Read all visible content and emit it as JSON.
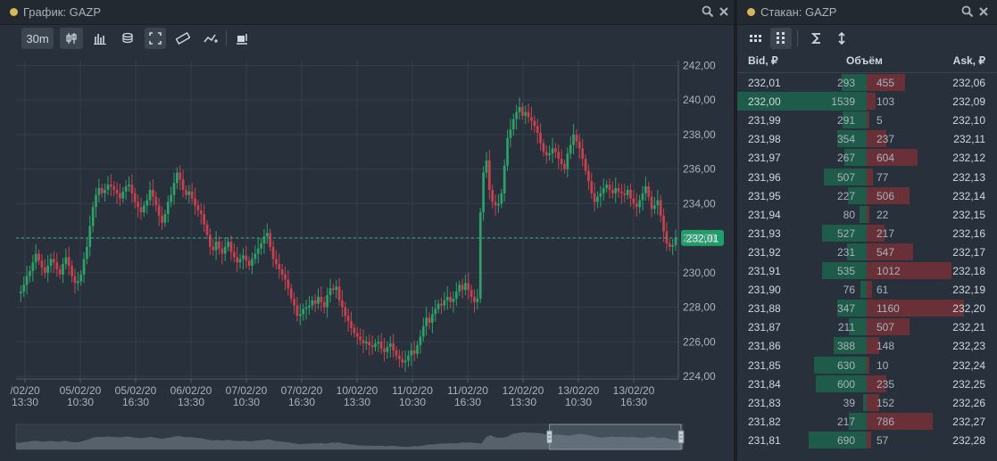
{
  "chart_panel": {
    "title": "График: GAZP",
    "interval": "30m"
  },
  "book_panel": {
    "title": "Стакан: GAZP"
  },
  "colors": {
    "up": "#2ea06a",
    "down": "#c8414f",
    "last_price_bg": "#1f9e6a",
    "bid_bar": "#1e5b48",
    "ask_bar": "#6a3038"
  },
  "icons": {
    "chart_toolbar": [
      "candlestick-icon",
      "bar-chart-icon",
      "coins-icon",
      "fullscreen-icon",
      "ruler-icon",
      "trend-line-icon",
      "export-icon"
    ],
    "book_toolbar": [
      "grid-compact-icon",
      "grid-icon",
      "sigma-icon",
      "sort-arrows-icon"
    ],
    "header": [
      "search-icon",
      "close-icon"
    ]
  },
  "chart_data": {
    "type": "candlestick",
    "instrument": "GAZP",
    "y_ticks": [
      "242,00",
      "240,00",
      "238,00",
      "236,00",
      "234,00",
      "232,00",
      "230,00",
      "228,00",
      "226,00",
      "224,00"
    ],
    "ylim": [
      224,
      242
    ],
    "last_price": "232,01",
    "last_price_value": 232.01,
    "x_ticks": [
      {
        "date": "/02/20",
        "time": "13:30"
      },
      {
        "date": "05/02/20",
        "time": "10:30"
      },
      {
        "date": "05/02/20",
        "time": "16:30"
      },
      {
        "date": "06/02/20",
        "time": "13:30"
      },
      {
        "date": "07/02/20",
        "time": "10:30"
      },
      {
        "date": "07/02/20",
        "time": "16:30"
      },
      {
        "date": "10/02/20",
        "time": "13:30"
      },
      {
        "date": "11/02/20",
        "time": "10:30"
      },
      {
        "date": "11/02/20",
        "time": "16:30"
      },
      {
        "date": "12/02/20",
        "time": "13:30"
      },
      {
        "date": "13/02/20",
        "time": "10:30"
      },
      {
        "date": "13/02/20",
        "time": "16:30"
      }
    ],
    "close_series": [
      228.8,
      228.9,
      229.3,
      229.8,
      230.1,
      230.6,
      231.1,
      230.7,
      230.3,
      230.0,
      230.4,
      230.8,
      230.6,
      230.2,
      229.9,
      230.5,
      230.9,
      230.4,
      229.8,
      229.4,
      229.5,
      229.9,
      230.8,
      231.5,
      232.7,
      233.8,
      234.5,
      234.9,
      234.6,
      234.8,
      235.1,
      235.0,
      234.8,
      234.6,
      234.3,
      234.7,
      235.0,
      235.1,
      234.6,
      234.1,
      233.8,
      233.5,
      233.9,
      234.2,
      234.8,
      234.4,
      233.9,
      233.3,
      232.9,
      233.4,
      234.1,
      234.5,
      235.2,
      235.8,
      235.4,
      234.8,
      234.5,
      234.7,
      234.3,
      233.9,
      233.6,
      233.4,
      232.8,
      232.2,
      231.5,
      231.3,
      231.8,
      231.4,
      231.1,
      231.5,
      231.8,
      231.2,
      230.9,
      230.6,
      230.8,
      231.0,
      230.7,
      230.4,
      230.8,
      231.1,
      231.4,
      231.7,
      232.1,
      232.3,
      231.5,
      230.8,
      230.5,
      230.2,
      229.9,
      229.6,
      229.1,
      228.5,
      228.1,
      227.5,
      227.6,
      227.9,
      228.0,
      228.1,
      228.4,
      228.2,
      228.6,
      228.3,
      228.0,
      228.7,
      229.1,
      229.0,
      229.2,
      228.4,
      228.0,
      227.5,
      227.2,
      226.8,
      226.5,
      226.3,
      226.1,
      225.9,
      226.0,
      225.8,
      225.7,
      225.9,
      226.0,
      225.6,
      225.4,
      225.7,
      225.9,
      225.5,
      225.2,
      225.0,
      224.8,
      224.9,
      225.2,
      225.5,
      225.3,
      225.8,
      226.3,
      226.9,
      227.4,
      227.1,
      227.6,
      227.9,
      228.2,
      228.1,
      228.4,
      228.6,
      228.3,
      228.5,
      228.9,
      229.3,
      229.0,
      229.4,
      229.0,
      228.6,
      228.3,
      228.5,
      233.5,
      235.8,
      236.5,
      234.8,
      234.1,
      233.9,
      234.0,
      234.6,
      236.2,
      237.8,
      238.3,
      238.9,
      239.3,
      239.6,
      239.1,
      239.3,
      239.0,
      238.8,
      238.5,
      238.1,
      237.5,
      237.0,
      236.8,
      236.9,
      237.2,
      237.0,
      236.6,
      236.3,
      236.0,
      236.9,
      237.4,
      238.0,
      237.6,
      237.2,
      236.6,
      235.9,
      235.3,
      234.6,
      234.1,
      234.4,
      234.6,
      234.9,
      235.1,
      234.8,
      234.6,
      234.9,
      234.7,
      234.6,
      234.5,
      234.8,
      234.3,
      234.0,
      233.8,
      234.2,
      234.6,
      235.0,
      234.4,
      233.7,
      233.9,
      234.2,
      233.3,
      232.4,
      231.7,
      231.5,
      231.6,
      232.0
    ]
  },
  "navigator": {
    "window_start_pct": 80,
    "window_end_pct": 100
  },
  "order_book": {
    "headers": {
      "bid": "Bid, ₽",
      "volume": "Объём",
      "ask": "Ask, ₽"
    },
    "max_volume": 1539,
    "rows": [
      {
        "bid": "231,81",
        "bid_vol": "690",
        "ask_vol": "57",
        "ask": "232,28"
      },
      {
        "bid": "231,82",
        "bid_vol": "217",
        "ask_vol": "786",
        "ask": "232,27"
      },
      {
        "bid": "231,83",
        "bid_vol": "39",
        "ask_vol": "152",
        "ask": "232,26"
      },
      {
        "bid": "231,84",
        "bid_vol": "600",
        "ask_vol": "235",
        "ask": "232,25"
      },
      {
        "bid": "231,85",
        "bid_vol": "630",
        "ask_vol": "10",
        "ask": "232,24"
      },
      {
        "bid": "231,86",
        "bid_vol": "388",
        "ask_vol": "148",
        "ask": "232,23"
      },
      {
        "bid": "231,87",
        "bid_vol": "211",
        "ask_vol": "507",
        "ask": "232,21"
      },
      {
        "bid": "231,88",
        "bid_vol": "347",
        "ask_vol": "1160",
        "ask": "232,20"
      },
      {
        "bid": "231,90",
        "bid_vol": "76",
        "ask_vol": "61",
        "ask": "232,19"
      },
      {
        "bid": "231,91",
        "bid_vol": "535",
        "ask_vol": "1012",
        "ask": "232,18"
      },
      {
        "bid": "231,92",
        "bid_vol": "231",
        "ask_vol": "547",
        "ask": "232,17"
      },
      {
        "bid": "231,93",
        "bid_vol": "527",
        "ask_vol": "217",
        "ask": "232,16"
      },
      {
        "bid": "231,94",
        "bid_vol": "80",
        "ask_vol": "22",
        "ask": "232,15"
      },
      {
        "bid": "231,95",
        "bid_vol": "227",
        "ask_vol": "506",
        "ask": "232,14"
      },
      {
        "bid": "231,96",
        "bid_vol": "507",
        "ask_vol": "77",
        "ask": "232,13"
      },
      {
        "bid": "231,97",
        "bid_vol": "267",
        "ask_vol": "604",
        "ask": "232,12"
      },
      {
        "bid": "231,98",
        "bid_vol": "354",
        "ask_vol": "237",
        "ask": "232,11"
      },
      {
        "bid": "231,99",
        "bid_vol": "291",
        "ask_vol": "5",
        "ask": "232,10"
      },
      {
        "bid": "232,00",
        "bid_vol": "1539",
        "ask_vol": "103",
        "ask": "232,09"
      },
      {
        "bid": "232,01",
        "bid_vol": "293",
        "ask_vol": "455",
        "ask": "232,06"
      }
    ]
  }
}
